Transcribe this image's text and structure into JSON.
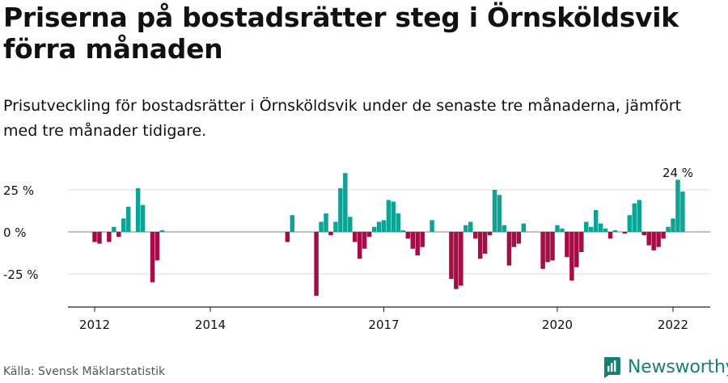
{
  "title": "Priserna på bostadsrätter steg i Örnsköldsvik förra månaden",
  "subtitle": "Prisutveckling för bostadsrätter i Örnsköldsvik under de senaste tre månaderna, jämfört med tre månader tidigare.",
  "source": "Källa: Svensk Mäklarstatistik",
  "brand": "Newsworthy",
  "colors": {
    "positive": "#0fa396",
    "negative": "#a40d45",
    "grid": "#dcdcdc",
    "brand": "#1a7f72"
  },
  "chart_data": {
    "type": "bar",
    "x_start": "2011-10",
    "x_end": "2022-07",
    "ylim": [
      -43,
      33
    ],
    "yticks": [
      25,
      0,
      -25
    ],
    "ytick_labels": [
      "25 %",
      "0 %",
      "-25 %"
    ],
    "xticks": [
      "2012-01",
      "2014-01",
      "2017-01",
      "2020-01",
      "2022-01"
    ],
    "xtick_labels": [
      "2012",
      "2014",
      "2017",
      "2020",
      "2022"
    ],
    "annotation": {
      "text": "24 %",
      "x": "2022-01"
    },
    "points": [
      {
        "x": "2012-01",
        "y": -6
      },
      {
        "x": "2012-02",
        "y": -7
      },
      {
        "x": "2012-04",
        "y": -6
      },
      {
        "x": "2012-05",
        "y": 3
      },
      {
        "x": "2012-06",
        "y": -3
      },
      {
        "x": "2012-07",
        "y": 8
      },
      {
        "x": "2012-08",
        "y": 15
      },
      {
        "x": "2012-10",
        "y": 26
      },
      {
        "x": "2012-11",
        "y": 16
      },
      {
        "x": "2013-01",
        "y": -30
      },
      {
        "x": "2013-02",
        "y": -17
      },
      {
        "x": "2013-03",
        "y": 1
      },
      {
        "x": "2015-05",
        "y": -6
      },
      {
        "x": "2015-06",
        "y": 10
      },
      {
        "x": "2015-11",
        "y": -38
      },
      {
        "x": "2015-12",
        "y": 6
      },
      {
        "x": "2016-01",
        "y": 11
      },
      {
        "x": "2016-02",
        "y": -2
      },
      {
        "x": "2016-03",
        "y": 6
      },
      {
        "x": "2016-04",
        "y": 26
      },
      {
        "x": "2016-05",
        "y": 35
      },
      {
        "x": "2016-06",
        "y": 9
      },
      {
        "x": "2016-07",
        "y": -6
      },
      {
        "x": "2016-08",
        "y": -16
      },
      {
        "x": "2016-09",
        "y": -10
      },
      {
        "x": "2016-10",
        "y": -3
      },
      {
        "x": "2016-11",
        "y": 3
      },
      {
        "x": "2016-12",
        "y": 6
      },
      {
        "x": "2017-01",
        "y": 7
      },
      {
        "x": "2017-02",
        "y": 19
      },
      {
        "x": "2017-03",
        "y": 18
      },
      {
        "x": "2017-04",
        "y": 11
      },
      {
        "x": "2017-05",
        "y": 1
      },
      {
        "x": "2017-06",
        "y": -4
      },
      {
        "x": "2017-07",
        "y": -10
      },
      {
        "x": "2017-08",
        "y": -14
      },
      {
        "x": "2017-09",
        "y": -9
      },
      {
        "x": "2017-11",
        "y": 7
      },
      {
        "x": "2018-03",
        "y": -28
      },
      {
        "x": "2018-04",
        "y": -34
      },
      {
        "x": "2018-05",
        "y": -32
      },
      {
        "x": "2018-06",
        "y": 4
      },
      {
        "x": "2018-07",
        "y": 6
      },
      {
        "x": "2018-08",
        "y": -4
      },
      {
        "x": "2018-09",
        "y": -16
      },
      {
        "x": "2018-10",
        "y": -13
      },
      {
        "x": "2018-11",
        "y": -2
      },
      {
        "x": "2018-12",
        "y": 25
      },
      {
        "x": "2019-01",
        "y": 22
      },
      {
        "x": "2019-02",
        "y": 4
      },
      {
        "x": "2019-03",
        "y": -20
      },
      {
        "x": "2019-04",
        "y": -9
      },
      {
        "x": "2019-05",
        "y": -7
      },
      {
        "x": "2019-06",
        "y": 5
      },
      {
        "x": "2019-10",
        "y": -22
      },
      {
        "x": "2019-11",
        "y": -18
      },
      {
        "x": "2019-12",
        "y": -17
      },
      {
        "x": "2020-01",
        "y": 4
      },
      {
        "x": "2020-02",
        "y": 2
      },
      {
        "x": "2020-03",
        "y": -15
      },
      {
        "x": "2020-04",
        "y": -29
      },
      {
        "x": "2020-05",
        "y": -21
      },
      {
        "x": "2020-06",
        "y": -12
      },
      {
        "x": "2020-07",
        "y": 6
      },
      {
        "x": "2020-08",
        "y": 3
      },
      {
        "x": "2020-09",
        "y": 13
      },
      {
        "x": "2020-10",
        "y": 5
      },
      {
        "x": "2020-11",
        "y": 2
      },
      {
        "x": "2020-12",
        "y": -4
      },
      {
        "x": "2021-01",
        "y": 1
      },
      {
        "x": "2021-03",
        "y": -1
      },
      {
        "x": "2021-04",
        "y": 10
      },
      {
        "x": "2021-05",
        "y": 17
      },
      {
        "x": "2021-06",
        "y": 19
      },
      {
        "x": "2021-07",
        "y": -2
      },
      {
        "x": "2021-08",
        "y": -8
      },
      {
        "x": "2021-09",
        "y": -11
      },
      {
        "x": "2021-10",
        "y": -9
      },
      {
        "x": "2021-11",
        "y": -4
      },
      {
        "x": "2021-12",
        "y": 3
      },
      {
        "x": "2022-01",
        "y": 8
      },
      {
        "x": "2022-02",
        "y": 31
      },
      {
        "x": "2022-03",
        "y": 24
      }
    ]
  }
}
